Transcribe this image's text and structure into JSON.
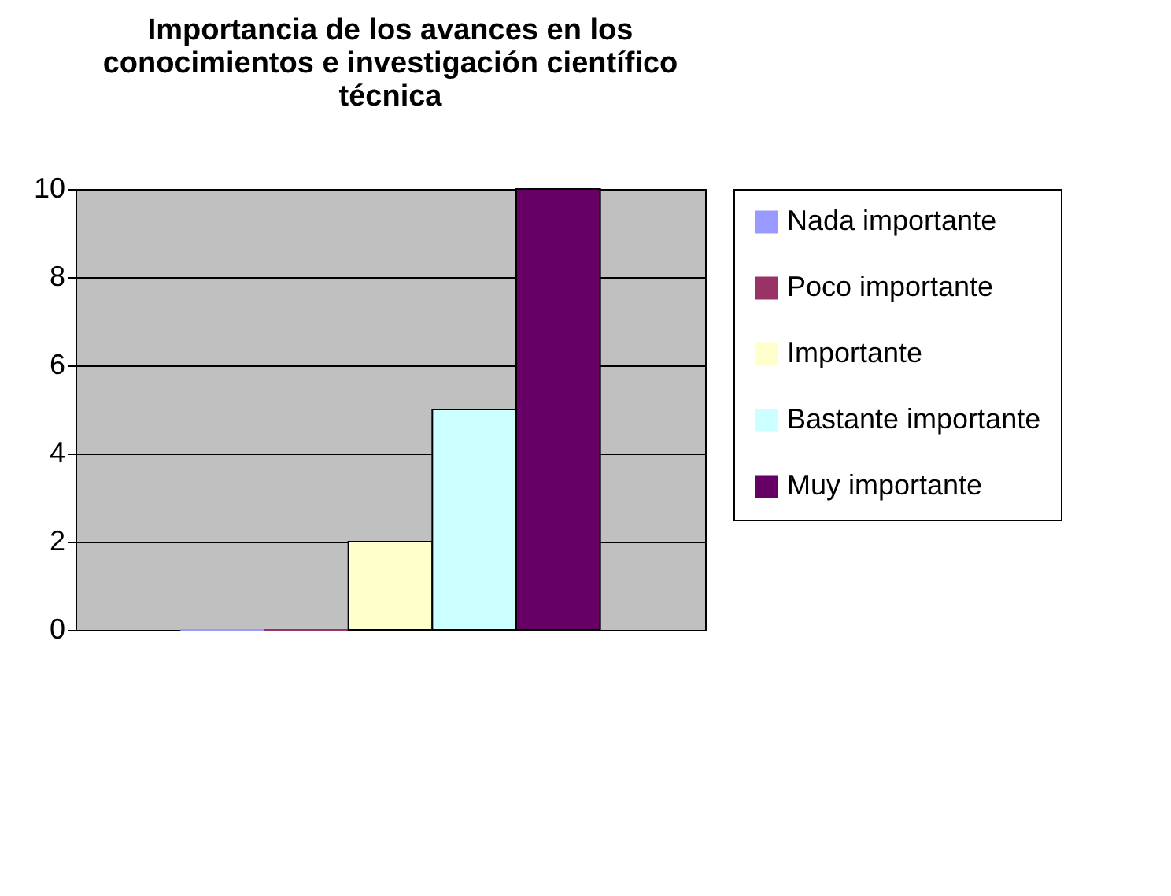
{
  "chart_data": {
    "type": "bar",
    "title": "Importancia de los avances en los conocimientos e investigación científico técnica",
    "categories": [
      null
    ],
    "series": [
      {
        "name": "Nada importante",
        "color": "#9999ff",
        "values": [
          0
        ]
      },
      {
        "name": "Poco importante",
        "color": "#993366",
        "values": [
          0
        ]
      },
      {
        "name": "Importante",
        "color": "#ffffcc",
        "values": [
          2
        ]
      },
      {
        "name": "Bastante importante",
        "color": "#ccffff",
        "values": [
          5
        ]
      },
      {
        "name": "Muy importante",
        "color": "#660066",
        "values": [
          10
        ]
      }
    ],
    "ylim": [
      0,
      10
    ],
    "yticks": [
      0,
      2,
      4,
      6,
      8,
      10
    ],
    "grid": "y",
    "legend": "right"
  }
}
